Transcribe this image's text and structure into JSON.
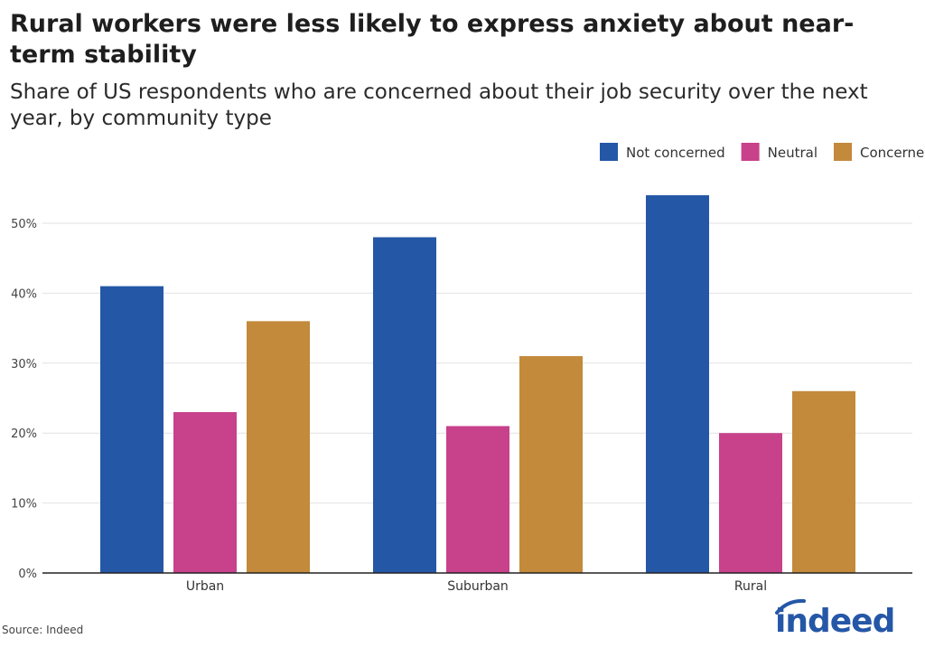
{
  "chart_data": {
    "type": "bar",
    "title": "Rural workers were less likely to express anxiety about near-term stability",
    "subtitle": "Share of US respondents who are concerned about their job security over the next year, by community type",
    "categories": [
      "Urban",
      "Suburban",
      "Rural"
    ],
    "series": [
      {
        "name": "Not concerned",
        "values": [
          41,
          48,
          54
        ],
        "color": "#2557a7"
      },
      {
        "name": "Neutral",
        "values": [
          23,
          21,
          20
        ],
        "color": "#c8418b"
      },
      {
        "name": "Concerned",
        "values": [
          36,
          31,
          26
        ],
        "color": "#c28a3a"
      }
    ],
    "yticks": [
      "0%",
      "10%",
      "20%",
      "30%",
      "40%",
      "50%"
    ],
    "ylim": [
      0,
      55
    ],
    "grid": true,
    "legend_position": "top-right",
    "xlabel": "",
    "ylabel": ""
  },
  "source": "Source: Indeed",
  "logo_text": "indeed"
}
